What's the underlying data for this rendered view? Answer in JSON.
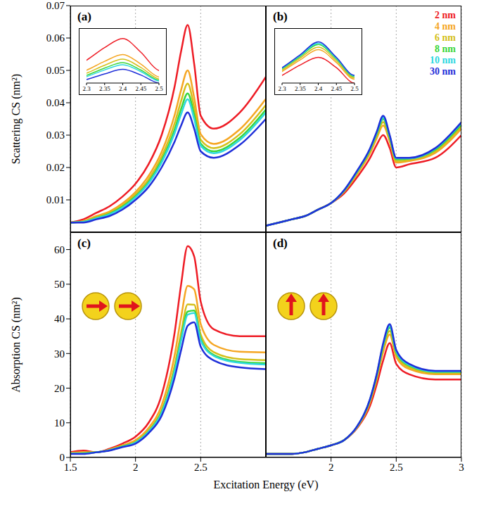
{
  "xlabel": "Excitation Energy (eV)",
  "chart_data": [
    {
      "type": "line",
      "title": "(a)",
      "ylabel": "Scattering CS (nm²)",
      "x": [
        1.5,
        1.6,
        1.7,
        1.8,
        1.9,
        2.0,
        2.1,
        2.2,
        2.3,
        2.35,
        2.4,
        2.45,
        2.5,
        2.6,
        2.8,
        3.0
      ],
      "xlim": [
        1.5,
        3
      ],
      "xticks": [
        1.5,
        2,
        2.5
      ],
      "ylim": [
        0,
        0.07
      ],
      "yticks": [
        0.01,
        0.02,
        0.03,
        0.04,
        0.05,
        0.06,
        0.07
      ],
      "grid": true,
      "tick_labels": "y",
      "inset": {
        "xlim": [
          2.3,
          2.5
        ],
        "xticks": [
          2.3,
          2.35,
          2.4,
          2.45,
          2.5
        ],
        "ylim": [
          0.025,
          0.07
        ],
        "tick_labels": "x"
      },
      "series": [
        {
          "name": "2 nm",
          "color": "#ee1c25",
          "values": [
            0.003,
            0.004,
            0.006,
            0.008,
            0.011,
            0.015,
            0.021,
            0.03,
            0.045,
            0.056,
            0.064,
            0.052,
            0.036,
            0.032,
            0.037,
            0.048
          ]
        },
        {
          "name": "4 nm",
          "color": "#f5a623",
          "values": [
            0.003,
            0.0035,
            0.005,
            0.0064,
            0.0089,
            0.0124,
            0.0174,
            0.0248,
            0.0362,
            0.044,
            0.05,
            0.0416,
            0.0303,
            0.0273,
            0.0318,
            0.0412
          ]
        },
        {
          "name": "6 nm",
          "color": "#d4bf1a",
          "values": [
            0.003,
            0.0033,
            0.0047,
            0.006,
            0.0083,
            0.0117,
            0.0163,
            0.0233,
            0.0336,
            0.0406,
            0.0459,
            0.0386,
            0.0286,
            0.026,
            0.0303,
            0.0393
          ]
        },
        {
          "name": "8 nm",
          "color": "#3ad63a",
          "values": [
            0.003,
            0.0032,
            0.0044,
            0.0057,
            0.0079,
            0.0111,
            0.0155,
            0.0222,
            0.0317,
            0.0381,
            0.0429,
            0.0364,
            0.0274,
            0.025,
            0.0292,
            0.0379
          ]
        },
        {
          "name": "10 nm",
          "color": "#2ed8e0",
          "values": [
            0.003,
            0.0032,
            0.0043,
            0.0055,
            0.0076,
            0.0108,
            0.0151,
            0.0215,
            0.0306,
            0.0365,
            0.0411,
            0.035,
            0.0267,
            0.0244,
            0.0285,
            0.037
          ]
        },
        {
          "name": "30 nm",
          "color": "#1f2fd9",
          "values": [
            0.003,
            0.003,
            0.004,
            0.005,
            0.007,
            0.01,
            0.014,
            0.02,
            0.028,
            0.033,
            0.037,
            0.032,
            0.025,
            0.023,
            0.027,
            0.035
          ]
        }
      ]
    },
    {
      "type": "line",
      "title": "(b)",
      "x": [
        1.5,
        1.6,
        1.7,
        1.8,
        1.9,
        2.0,
        2.1,
        2.2,
        2.3,
        2.35,
        2.4,
        2.45,
        2.5,
        2.6,
        2.8,
        3.0
      ],
      "xlim": [
        1.5,
        3
      ],
      "xticks": [
        2,
        2.5,
        3
      ],
      "ylim": [
        0,
        0.07
      ],
      "grid": true,
      "tick_labels": false,
      "legend": "top-right",
      "inset": {
        "xlim": [
          2.3,
          2.5
        ],
        "xticks": [
          2.3,
          2.35,
          2.4,
          2.45,
          2.5
        ],
        "ylim": [
          0.02,
          0.04
        ],
        "tick_labels": "x"
      },
      "series": [
        {
          "name": "2 nm",
          "color": "#ee1c25",
          "values": [
            0.002,
            0.003,
            0.004,
            0.005,
            0.007,
            0.009,
            0.012,
            0.017,
            0.023,
            0.027,
            0.03,
            0.026,
            0.02,
            0.021,
            0.023,
            0.03
          ]
        },
        {
          "name": "4 nm",
          "color": "#f5a623",
          "values": [
            0.002,
            0.003,
            0.004,
            0.005,
            0.007,
            0.009,
            0.0125,
            0.018,
            0.0245,
            0.029,
            0.033,
            0.028,
            0.0215,
            0.022,
            0.0245,
            0.032
          ]
        },
        {
          "name": "6 nm",
          "color": "#d4bf1a",
          "values": [
            0.002,
            0.003,
            0.004,
            0.005,
            0.007,
            0.009,
            0.0127,
            0.0183,
            0.025,
            0.0297,
            0.034,
            0.0287,
            0.022,
            0.0223,
            0.025,
            0.0327
          ]
        },
        {
          "name": "8 nm",
          "color": "#3ad63a",
          "values": [
            0.002,
            0.003,
            0.004,
            0.005,
            0.007,
            0.009,
            0.0128,
            0.0187,
            0.0255,
            0.0303,
            0.035,
            0.0293,
            0.0225,
            0.0227,
            0.0255,
            0.0333
          ]
        },
        {
          "name": "10 nm",
          "color": "#2ed8e0",
          "values": [
            0.002,
            0.003,
            0.004,
            0.005,
            0.007,
            0.009,
            0.0129,
            0.0188,
            0.0258,
            0.0307,
            0.0355,
            0.0297,
            0.0228,
            0.0228,
            0.0258,
            0.0337
          ]
        },
        {
          "name": "30 nm",
          "color": "#1f2fd9",
          "values": [
            0.002,
            0.003,
            0.004,
            0.005,
            0.007,
            0.009,
            0.013,
            0.019,
            0.026,
            0.031,
            0.036,
            0.03,
            0.023,
            0.023,
            0.026,
            0.034
          ]
        }
      ]
    },
    {
      "type": "line",
      "title": "(c)",
      "ylabel": "Absorption CS (nm²)",
      "x": [
        1.5,
        1.6,
        1.7,
        1.8,
        1.9,
        2.0,
        2.1,
        2.2,
        2.3,
        2.35,
        2.4,
        2.45,
        2.5,
        2.6,
        2.8,
        3.0
      ],
      "xlim": [
        1.5,
        3
      ],
      "xticks": [
        1.5,
        2,
        2.5
      ],
      "ylim": [
        0,
        65
      ],
      "yticks": [
        0,
        10,
        20,
        30,
        40,
        50,
        60
      ],
      "grid": true,
      "tick_labels": true,
      "series": [
        {
          "name": "2 nm",
          "color": "#ee1c25",
          "values": [
            1.5,
            2,
            1.5,
            2.5,
            4,
            6,
            10,
            18,
            36,
            50,
            61,
            58,
            45,
            37,
            35,
            35
          ]
        },
        {
          "name": "4 nm",
          "color": "#f5a623",
          "values": [
            1.3,
            1.5,
            1.5,
            2.3,
            3.5,
            5,
            8.5,
            15,
            29.5,
            40.5,
            49.5,
            48.5,
            38.5,
            32.5,
            30.5,
            30.3
          ]
        },
        {
          "name": "6 nm",
          "color": "#d4bf1a",
          "values": [
            1.1,
            1.3,
            1.5,
            2.1,
            3.3,
            4.5,
            7.8,
            13.6,
            26.5,
            36.1,
            44.2,
            44.1,
            35.5,
            30.4,
            28.4,
            28.1
          ]
        },
        {
          "name": "8 nm",
          "color": "#3ad63a",
          "values": [
            1.1,
            1.2,
            1.5,
            2.1,
            3.2,
            4.4,
            7.5,
            13.1,
            25.3,
            34.4,
            42.1,
            42.4,
            34.3,
            29.6,
            27.6,
            27.2
          ]
        },
        {
          "name": "10 nm",
          "color": "#2ed8e0",
          "values": [
            1.1,
            1.1,
            1.5,
            2.1,
            3.1,
            4.3,
            7.4,
            12.8,
            24.8,
            33.7,
            41.2,
            41.7,
            33.8,
            29.3,
            27.3,
            26.8
          ]
        },
        {
          "name": "30 nm",
          "color": "#1f2fd9",
          "values": [
            1,
            1,
            1.5,
            2,
            3,
            4,
            7,
            12,
            23,
            31,
            38,
            39,
            32,
            28,
            26,
            25.5
          ]
        }
      ]
    },
    {
      "type": "line",
      "title": "(d)",
      "x": [
        1.5,
        1.6,
        1.7,
        1.8,
        1.9,
        2.0,
        2.1,
        2.2,
        2.3,
        2.35,
        2.4,
        2.45,
        2.5,
        2.6,
        2.8,
        3.0
      ],
      "xlim": [
        1.5,
        3
      ],
      "xticks": [
        2,
        2.5,
        3
      ],
      "ylim": [
        0,
        65
      ],
      "grid": true,
      "tick_labels": "x",
      "series": [
        {
          "name": "2 nm",
          "color": "#ee1c25",
          "values": [
            1,
            1,
            1,
            1.5,
            2.5,
            3.5,
            5,
            8.5,
            15,
            21,
            28,
            33,
            27,
            24,
            22.5,
            22.5
          ]
        },
        {
          "name": "4 nm",
          "color": "#f5a623",
          "values": [
            1,
            1,
            1,
            1.5,
            2.5,
            3.5,
            5,
            8.7,
            16,
            22.5,
            30.5,
            35.5,
            29,
            25.5,
            24,
            24
          ]
        },
        {
          "name": "6 nm",
          "color": "#d4bf1a",
          "values": [
            1,
            1,
            1,
            1.5,
            2.5,
            3.5,
            5,
            8.8,
            16.5,
            23,
            31.5,
            36.5,
            29.8,
            26,
            24.4,
            24.4
          ]
        },
        {
          "name": "8 nm",
          "color": "#3ad63a",
          "values": [
            1,
            1,
            1,
            1.5,
            2.5,
            3.5,
            5,
            8.9,
            16.7,
            23.5,
            32.2,
            37.5,
            30.3,
            26.5,
            24.7,
            24.7
          ]
        },
        {
          "name": "10 nm",
          "color": "#2ed8e0",
          "values": [
            1,
            1,
            1,
            1.5,
            2.5,
            3.5,
            5,
            8.9,
            16.9,
            23.8,
            32.6,
            38,
            30.6,
            26.7,
            24.8,
            24.8
          ]
        },
        {
          "name": "30 nm",
          "color": "#1f2fd9",
          "values": [
            1,
            1,
            1,
            1.5,
            2.5,
            3.5,
            5,
            9,
            17,
            24,
            33,
            38.5,
            31,
            27,
            25,
            25
          ]
        }
      ]
    }
  ]
}
